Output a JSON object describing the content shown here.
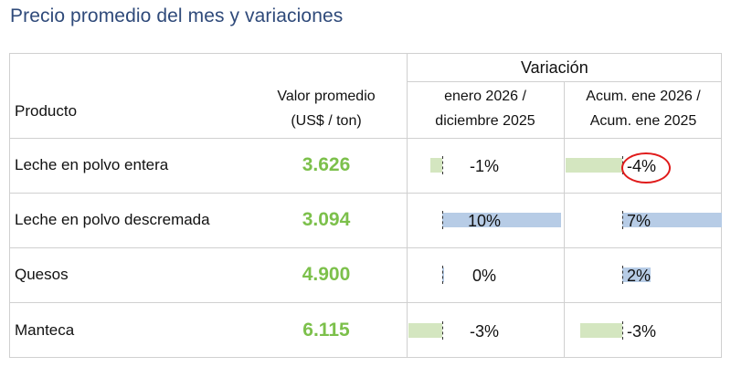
{
  "page_title": "Precio promedio del mes y variaciones",
  "header": {
    "variacion": "Variación",
    "producto": "Producto",
    "valor_line1": "Valor promedio",
    "valor_line2": "(US$ / ton)",
    "mensual_line1": "enero 2026 /",
    "mensual_line2": "diciembre 2025",
    "acum_line1": "Acum. ene 2026 /",
    "acum_line2": "Acum. ene 2025"
  },
  "colors": {
    "title": "#2f4a7a",
    "value": "#7cc04b",
    "bar_positive": "#b7cce6",
    "bar_negative": "#d4e6c0",
    "highlight_circle": "#e01b1b"
  },
  "rows": [
    {
      "producto": "Leche en polvo entera",
      "valor": "3.626",
      "mensual": "-1%",
      "mensual_value": -1,
      "acum": "-4%",
      "acum_value": -4,
      "acum_highlighted": true
    },
    {
      "producto": "Leche en polvo descremada",
      "valor": "3.094",
      "mensual": "10%",
      "mensual_value": 10,
      "acum": "7%",
      "acum_value": 7,
      "acum_highlighted": false
    },
    {
      "producto": "Quesos",
      "valor": "4.900",
      "mensual": "0%",
      "mensual_value": 0,
      "acum": "2%",
      "acum_value": 2,
      "acum_highlighted": false
    },
    {
      "producto": "Manteca",
      "valor": "6.115",
      "mensual": "-3%",
      "mensual_value": -3,
      "acum": "-3%",
      "acum_value": -3,
      "acum_highlighted": false
    }
  ]
}
